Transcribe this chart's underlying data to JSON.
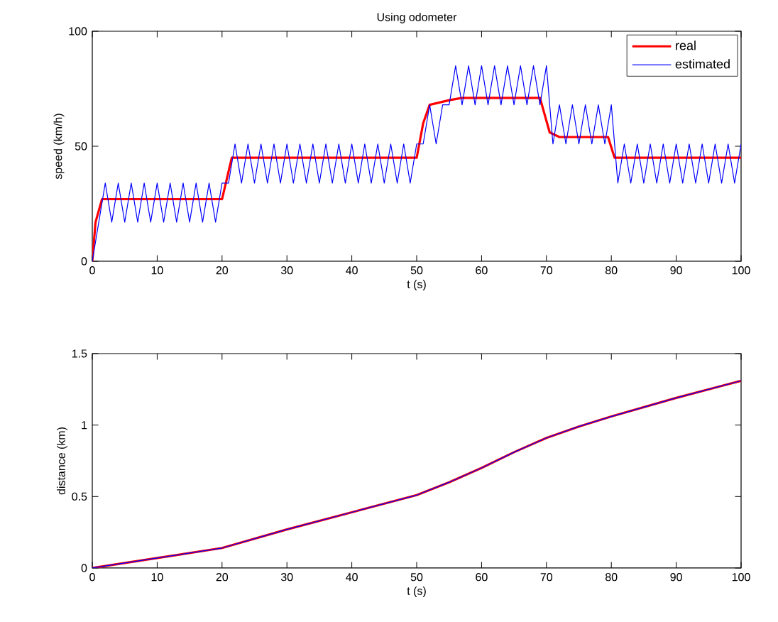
{
  "chart_data": [
    {
      "type": "line",
      "title": "Using odometer",
      "xlabel": "t (s)",
      "ylabel": "speed (km/h)",
      "xlim": [
        0,
        100
      ],
      "ylim": [
        0,
        100
      ],
      "xticks": [
        0,
        10,
        20,
        30,
        40,
        50,
        60,
        70,
        80,
        90,
        100
      ],
      "yticks": [
        0,
        50,
        100
      ],
      "grid": false,
      "legend": "top right",
      "marker": "none",
      "line_style": "solid",
      "series": [
        {
          "name": "real",
          "color": "#ff0000",
          "x": [
            0,
            0.5,
            1.5,
            20,
            21.5,
            50,
            51,
            52,
            55,
            57,
            69,
            70.5,
            72,
            79.5,
            80.5,
            100
          ],
          "values": [
            0,
            17,
            27,
            27,
            45,
            45,
            60,
            68,
            70,
            71,
            71,
            56,
            54,
            54,
            45,
            45
          ]
        },
        {
          "name": "estimated",
          "color": "#0000ff",
          "x": [
            0,
            1,
            2,
            3,
            4,
            5,
            6,
            7,
            8,
            9,
            10,
            11,
            12,
            13,
            14,
            15,
            16,
            17,
            18,
            19,
            20,
            21,
            22,
            23,
            24,
            25,
            26,
            27,
            28,
            29,
            30,
            31,
            32,
            33,
            34,
            35,
            36,
            37,
            38,
            39,
            40,
            41,
            42,
            43,
            44,
            45,
            46,
            47,
            48,
            49,
            50,
            51,
            52,
            53,
            54,
            55,
            56,
            57,
            58,
            59,
            60,
            61,
            62,
            63,
            64,
            65,
            66,
            67,
            68,
            69,
            70,
            71,
            72,
            73,
            74,
            75,
            76,
            77,
            78,
            79,
            80,
            81,
            82,
            83,
            84,
            85,
            86,
            87,
            88,
            89,
            90,
            91,
            92,
            93,
            94,
            95,
            96,
            97,
            98,
            99,
            100
          ],
          "values": [
            0,
            17,
            34,
            17,
            34,
            17,
            34,
            17,
            34,
            17,
            34,
            17,
            34,
            17,
            34,
            17,
            34,
            17,
            34,
            17,
            34,
            34,
            51,
            34,
            51,
            34,
            51,
            34,
            51,
            34,
            51,
            34,
            51,
            34,
            51,
            34,
            51,
            34,
            51,
            34,
            51,
            34,
            51,
            34,
            51,
            34,
            51,
            34,
            51,
            34,
            51,
            51,
            68,
            51,
            68,
            68,
            85,
            68,
            85,
            68,
            85,
            68,
            85,
            68,
            85,
            68,
            85,
            68,
            85,
            68,
            85,
            51,
            68,
            51,
            68,
            51,
            68,
            51,
            68,
            51,
            68,
            34,
            51,
            34,
            51,
            34,
            51,
            34,
            51,
            34,
            51,
            34,
            51,
            34,
            51,
            34,
            51,
            34,
            51,
            34,
            51
          ]
        }
      ]
    },
    {
      "type": "line",
      "xlabel": "t (s)",
      "ylabel": "distance (km)",
      "xlim": [
        0,
        100
      ],
      "ylim": [
        0,
        1.5
      ],
      "xticks": [
        0,
        10,
        20,
        30,
        40,
        50,
        60,
        70,
        80,
        90,
        100
      ],
      "yticks": [
        0,
        0.5,
        1,
        1.5
      ],
      "grid": false,
      "marker": "none",
      "line_style": "solid",
      "series": [
        {
          "color": "#ff0000",
          "x": [
            0,
            10,
            20,
            30,
            40,
            50,
            55,
            60,
            65,
            70,
            75,
            80,
            90,
            100
          ],
          "values": [
            0,
            0.07,
            0.14,
            0.27,
            0.39,
            0.51,
            0.6,
            0.7,
            0.81,
            0.91,
            0.99,
            1.06,
            1.19,
            1.31
          ]
        },
        {
          "color": "#0000ff",
          "x": [
            0,
            10,
            20,
            30,
            40,
            50,
            55,
            60,
            65,
            70,
            75,
            80,
            90,
            100
          ],
          "values": [
            0,
            0.07,
            0.14,
            0.27,
            0.39,
            0.51,
            0.6,
            0.7,
            0.81,
            0.91,
            0.99,
            1.06,
            1.19,
            1.31
          ]
        }
      ]
    }
  ]
}
